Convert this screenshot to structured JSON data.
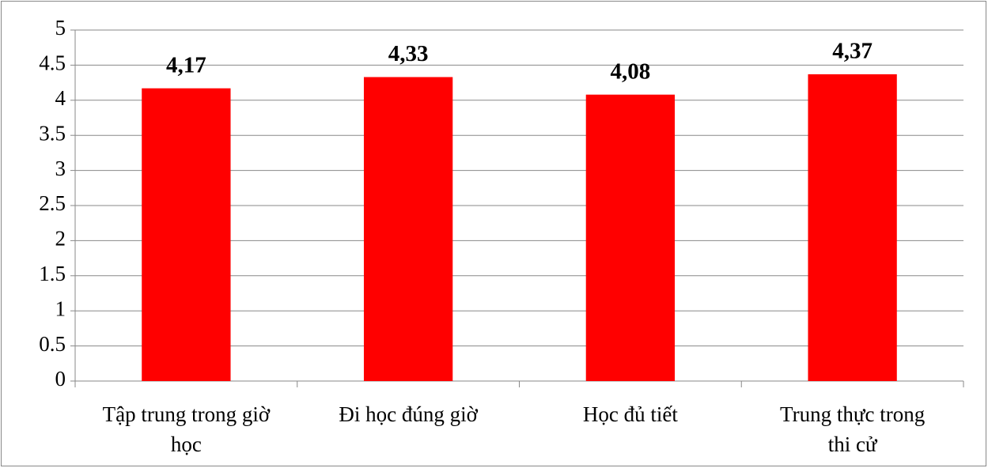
{
  "chart_data": {
    "type": "bar",
    "categories": [
      "Tập trung trong giờ\nhọc",
      "Đi học đúng giờ",
      "Học đủ tiết",
      "Trung thực trong\nthi cử"
    ],
    "values": [
      4.17,
      4.33,
      4.08,
      4.37
    ],
    "value_labels": [
      "4,17",
      "4,33",
      "4,08",
      "4,37"
    ],
    "color": "#ff0000",
    "ylim": [
      0,
      5
    ],
    "yticks": [
      0,
      0.5,
      1,
      1.5,
      2,
      2.5,
      3,
      3.5,
      4,
      4.5,
      5
    ],
    "grid": true
  }
}
